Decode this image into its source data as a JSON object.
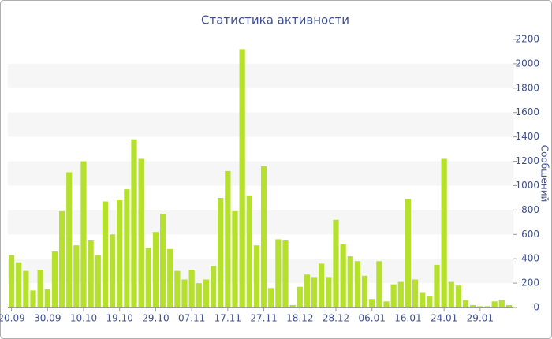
{
  "chart_data": {
    "type": "bar",
    "title": "Статистика активности",
    "y_label": "Сообщений",
    "categories": [
      "20.09",
      null,
      null,
      null,
      null,
      "30.09",
      null,
      null,
      null,
      null,
      "10.10",
      null,
      null,
      null,
      null,
      "19.10",
      null,
      null,
      null,
      null,
      "29.10",
      null,
      null,
      null,
      null,
      "07.11",
      null,
      null,
      null,
      null,
      "17.11",
      null,
      null,
      null,
      null,
      "27.11",
      null,
      null,
      null,
      null,
      "18.12",
      null,
      null,
      null,
      null,
      "28.12",
      null,
      null,
      null,
      null,
      "06.01",
      null,
      null,
      null,
      null,
      "16.01",
      null,
      null,
      null,
      null,
      "24.01",
      null,
      null,
      null,
      null,
      "29.01",
      null,
      null,
      null,
      null
    ],
    "values": [
      430,
      370,
      300,
      140,
      310,
      150,
      460,
      790,
      1110,
      510,
      1200,
      550,
      430,
      870,
      600,
      880,
      970,
      1380,
      1220,
      490,
      620,
      770,
      480,
      300,
      230,
      310,
      200,
      230,
      340,
      900,
      1120,
      790,
      2120,
      920,
      510,
      1160,
      160,
      560,
      550,
      20,
      170,
      270,
      250,
      360,
      250,
      720,
      520,
      420,
      380,
      260,
      70,
      380,
      50,
      190,
      210,
      890,
      230,
      120,
      90,
      350,
      1220,
      210,
      180,
      60,
      20,
      10,
      10,
      50,
      60,
      20
    ],
    "color": "#b5e02e",
    "ylim": [
      0,
      2200
    ],
    "yticks": [
      0,
      200,
      400,
      600,
      800,
      1000,
      1200,
      1400,
      1600,
      1800,
      2000,
      2200
    ],
    "grid": true
  }
}
